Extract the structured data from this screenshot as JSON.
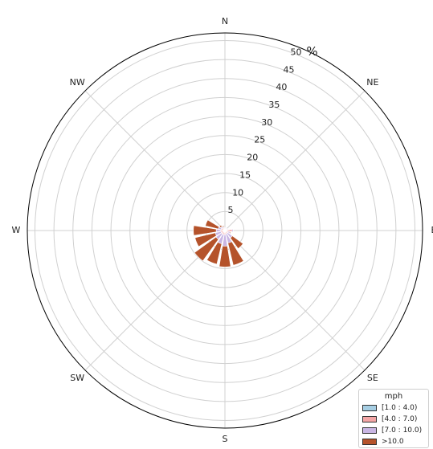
{
  "chart_data": {
    "type": "windrose",
    "unit": "%",
    "legend_title": "mph",
    "directions": [
      "N",
      "NNE",
      "NE",
      "ENE",
      "E",
      "ESE",
      "SE",
      "SSE",
      "S",
      "SSW",
      "SW",
      "WSW",
      "W",
      "WNW",
      "NW",
      "NNW"
    ],
    "direction_labels": [
      "N",
      "NE",
      "E",
      "SE",
      "S",
      "SW",
      "W",
      "NW"
    ],
    "rings": [
      5,
      10,
      15,
      20,
      25,
      30,
      35,
      40,
      45,
      50
    ],
    "rmax": 52,
    "legend_placement": "bottom-right",
    "series": [
      {
        "name": "[1.0 : 4.0)",
        "color": "#a6cee3",
        "values": [
          0.3,
          0.3,
          0.3,
          0.3,
          0.4,
          0.4,
          0.4,
          0.4,
          0.5,
          0.5,
          0.5,
          0.5,
          0.5,
          0.4,
          0.4,
          0.3
        ]
      },
      {
        "name": "[4.0 : 7.0)",
        "color": "#f4a6a6",
        "values": [
          0.3,
          0.3,
          0.3,
          0.3,
          1.5,
          0.5,
          0.5,
          0.5,
          0.6,
          0.6,
          0.6,
          0.6,
          0.6,
          0.6,
          0.5,
          0.4
        ]
      },
      {
        "name": "[7.0 : 10.0)",
        "color": "#c9b6e4",
        "values": [
          0.2,
          0.2,
          0.2,
          0.2,
          0.3,
          0.5,
          1.5,
          2.5,
          3.0,
          2.5,
          1.8,
          1.5,
          1.2,
          0.8,
          0.4,
          0.3
        ]
      },
      {
        "name": ">10.0",
        "color": "#b5532b",
        "values": [
          0.0,
          0.0,
          0.0,
          0.0,
          0.0,
          0.2,
          3.5,
          6.0,
          5.5,
          5.5,
          7.0,
          5.5,
          6.0,
          3.5,
          0.5,
          0.3
        ]
      }
    ]
  }
}
